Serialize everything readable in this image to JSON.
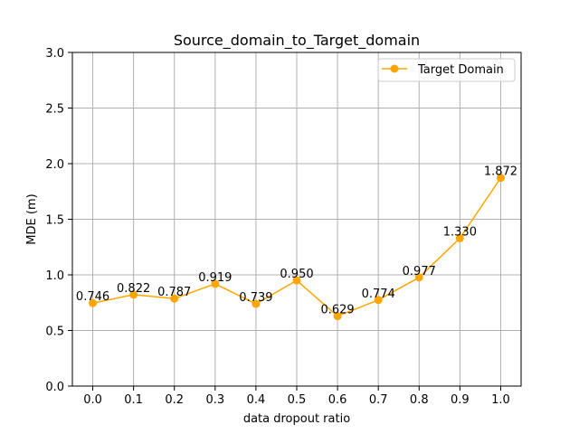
{
  "chart_data": {
    "type": "line",
    "title": "Source_domain_to_Target_domain",
    "xlabel": "data dropout ratio",
    "ylabel": "MDE (m)",
    "x": [
      0.0,
      0.1,
      0.2,
      0.3,
      0.4,
      0.5,
      0.6,
      0.7,
      0.8,
      0.9,
      1.0
    ],
    "x_tick_labels": [
      "0.0",
      "0.1",
      "0.2",
      "0.3",
      "0.4",
      "0.5",
      "0.6",
      "0.7",
      "0.8",
      "0.9",
      "1.0"
    ],
    "y_ticks": [
      0.0,
      0.5,
      1.0,
      1.5,
      2.0,
      2.5,
      3.0
    ],
    "y_tick_labels": [
      "0.0",
      "0.5",
      "1.0",
      "1.5",
      "2.0",
      "2.5",
      "3.0"
    ],
    "xlim": [
      -0.05,
      1.05
    ],
    "ylim": [
      0.0,
      3.0
    ],
    "grid": true,
    "legend_position": "top-right",
    "series": [
      {
        "name": "Target Domain",
        "color": "#ffa500",
        "marker": "circle",
        "values": [
          0.746,
          0.822,
          0.787,
          0.919,
          0.739,
          0.95,
          0.629,
          0.774,
          0.977,
          1.33,
          1.872
        ],
        "value_labels": [
          "0.746",
          "0.822",
          "0.787",
          "0.919",
          "0.739",
          "0.950",
          "0.629",
          "0.774",
          "0.977",
          "1.330",
          "1.872"
        ]
      }
    ]
  }
}
